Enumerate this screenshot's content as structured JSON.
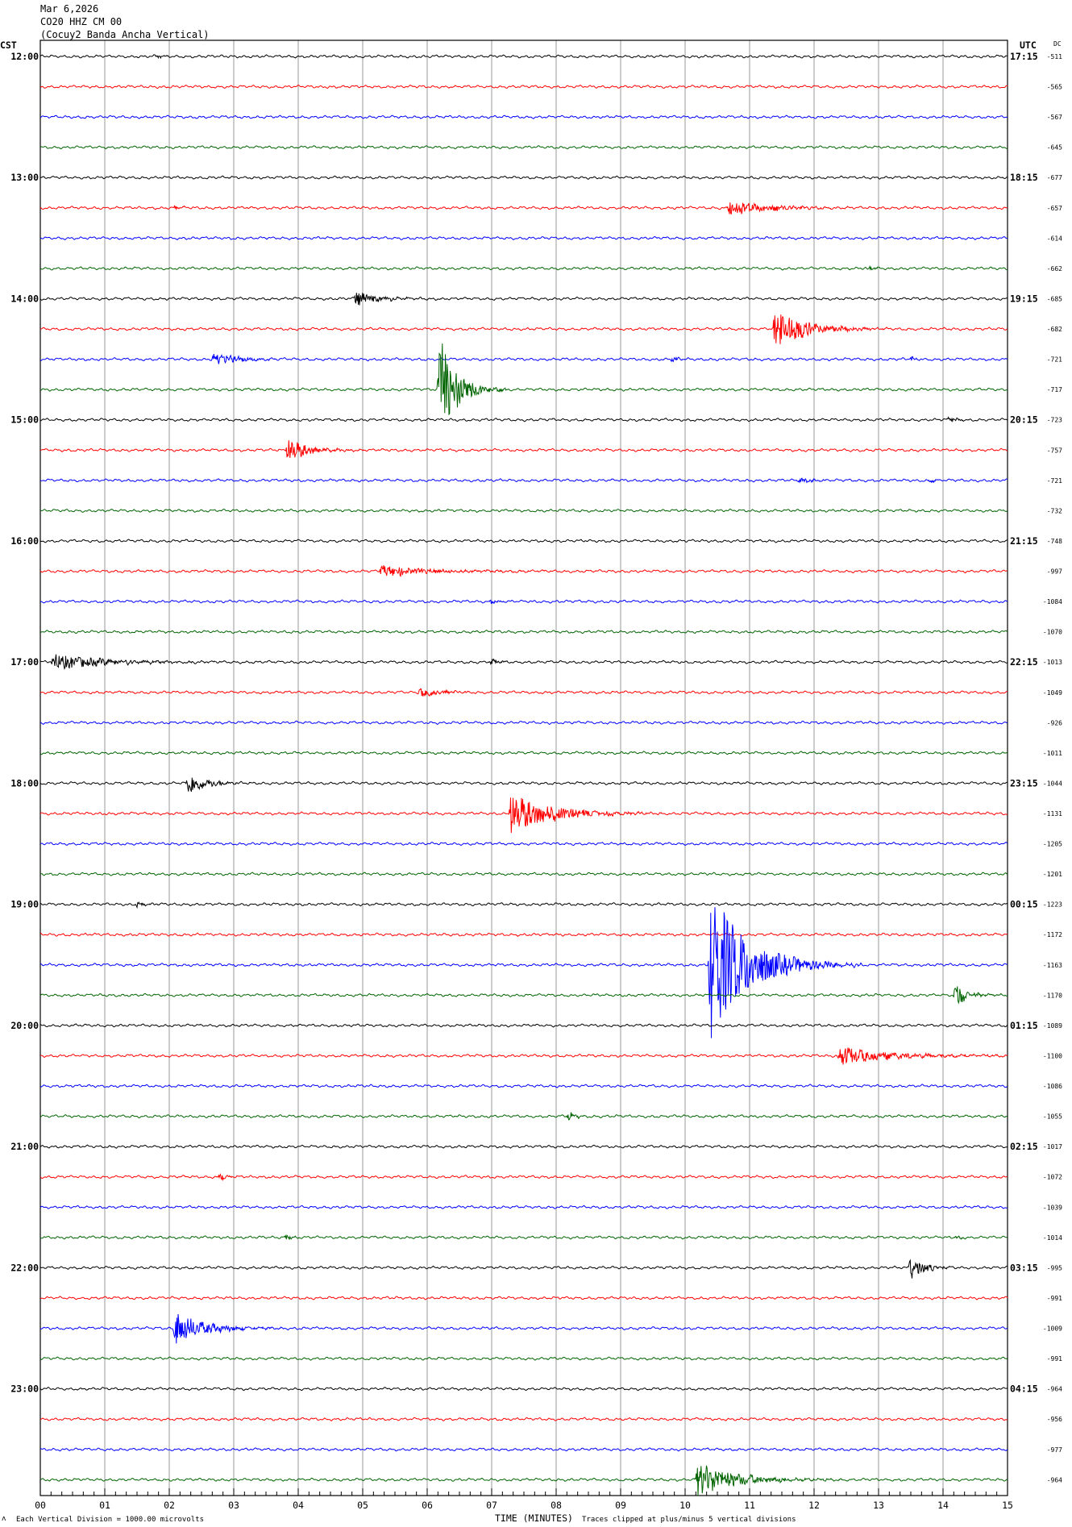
{
  "header": {
    "date": "Mar 6,2026",
    "station": "CO20 HHZ CM 00",
    "location": "(Cocuy2 Banda Ancha Vertical)"
  },
  "labels": {
    "left_tz": "CST",
    "right_tz": "UTC",
    "dc": "DC"
  },
  "footer": {
    "corner_mark": "ʌ",
    "scale_note": "Each Vertical Division = 1000.00 microvolts",
    "x_title": "TIME (MINUTES)",
    "clip_note": "Traces clipped at plus/minus 5 vertical divisions"
  },
  "colors": {
    "trace_cycle": [
      "#000000",
      "#ff0000",
      "#0000ff",
      "#006400"
    ],
    "grid": "#999999",
    "frame": "#000000"
  },
  "chart_data": {
    "type": "line",
    "xlabel": "TIME (MINUTES)",
    "xlim": [
      0,
      15
    ],
    "x_ticks": [
      "00",
      "01",
      "02",
      "03",
      "04",
      "05",
      "06",
      "07",
      "08",
      "09",
      "10",
      "11",
      "12",
      "13",
      "14",
      "15"
    ],
    "minutes_per_line": 15,
    "grid": true,
    "left_hour_labels": [
      "12:00",
      "13:00",
      "14:00",
      "15:00",
      "16:00",
      "17:00",
      "18:00",
      "19:00",
      "20:00",
      "21:00",
      "22:00",
      "23:00"
    ],
    "right_hour_labels": [
      "17:15",
      "18:15",
      "19:15",
      "20:15",
      "21:15",
      "22:15",
      "23:15",
      "00:15",
      "01:15",
      "02:15",
      "03:15",
      "04:15"
    ],
    "dc_offsets": [
      -511,
      -565,
      -567,
      -645,
      -677,
      -657,
      -614,
      -662,
      -685,
      -682,
      -721,
      -717,
      -723,
      -757,
      -721,
      -732,
      -748,
      -997,
      -1084,
      -1070,
      -1013,
      -1049,
      -926,
      -1011,
      -1044,
      -1131,
      -1205,
      -1201,
      -1223,
      -1172,
      -1163,
      -1170,
      -1089,
      -1100,
      -1086,
      -1055,
      -1017,
      -1072,
      -1039,
      -1014,
      -995,
      -991,
      -1009,
      -991,
      -964,
      -956,
      -977,
      -964
    ],
    "events": [
      {
        "line": 0,
        "minute": 1.8,
        "amp": 0.12,
        "dur": 0.3
      },
      {
        "line": 5,
        "minute": 10.7,
        "amp": 0.55,
        "dur": 1.6
      },
      {
        "line": 5,
        "minute": 2.1,
        "amp": 0.12,
        "dur": 0.2
      },
      {
        "line": 7,
        "minute": 12.85,
        "amp": 0.18,
        "dur": 0.2
      },
      {
        "line": 8,
        "minute": 4.9,
        "amp": 0.4,
        "dur": 1.1
      },
      {
        "line": 9,
        "minute": 11.4,
        "amp": 1.3,
        "dur": 1.4
      },
      {
        "line": 10,
        "minute": 2.7,
        "amp": 0.45,
        "dur": 1.0
      },
      {
        "line": 10,
        "minute": 9.8,
        "amp": 0.12,
        "dur": 0.3
      },
      {
        "line": 10,
        "minute": 13.5,
        "amp": 0.12,
        "dur": 0.3
      },
      {
        "line": 11,
        "minute": 6.2,
        "amp": 3.2,
        "dur": 0.8
      },
      {
        "line": 12,
        "minute": 14.1,
        "amp": 0.15,
        "dur": 0.4
      },
      {
        "line": 13,
        "minute": 3.85,
        "amp": 0.8,
        "dur": 0.9
      },
      {
        "line": 14,
        "minute": 11.8,
        "amp": 0.15,
        "dur": 0.6
      },
      {
        "line": 14,
        "minute": 13.8,
        "amp": 0.12,
        "dur": 0.3
      },
      {
        "line": 17,
        "minute": 5.3,
        "amp": 0.35,
        "dur": 2.3
      },
      {
        "line": 18,
        "minute": 7.0,
        "amp": 0.12,
        "dur": 0.5
      },
      {
        "line": 20,
        "minute": 0.2,
        "amp": 0.5,
        "dur": 2.4
      },
      {
        "line": 20,
        "minute": 7.0,
        "amp": 0.15,
        "dur": 0.4
      },
      {
        "line": 21,
        "minute": 5.9,
        "amp": 0.3,
        "dur": 0.9
      },
      {
        "line": 24,
        "minute": 2.3,
        "amp": 0.7,
        "dur": 0.8
      },
      {
        "line": 25,
        "minute": 7.3,
        "amp": 1.25,
        "dur": 1.9
      },
      {
        "line": 28,
        "minute": 1.5,
        "amp": 0.12,
        "dur": 0.4
      },
      {
        "line": 30,
        "minute": 10.4,
        "amp": 4.5,
        "dur": 1.8
      },
      {
        "line": 31,
        "minute": 14.2,
        "amp": 0.7,
        "dur": 0.6
      },
      {
        "line": 33,
        "minute": 12.4,
        "amp": 0.55,
        "dur": 2.4
      },
      {
        "line": 35,
        "minute": 8.2,
        "amp": 0.25,
        "dur": 0.3
      },
      {
        "line": 37,
        "minute": 2.8,
        "amp": 0.2,
        "dur": 0.3
      },
      {
        "line": 39,
        "minute": 3.8,
        "amp": 0.2,
        "dur": 0.3
      },
      {
        "line": 39,
        "minute": 14.2,
        "amp": 0.15,
        "dur": 0.3
      },
      {
        "line": 40,
        "minute": 13.5,
        "amp": 0.8,
        "dur": 0.6
      },
      {
        "line": 42,
        "minute": 2.1,
        "amp": 1.0,
        "dur": 1.3
      },
      {
        "line": 47,
        "minute": 10.2,
        "amp": 1.0,
        "dur": 1.9
      }
    ]
  }
}
